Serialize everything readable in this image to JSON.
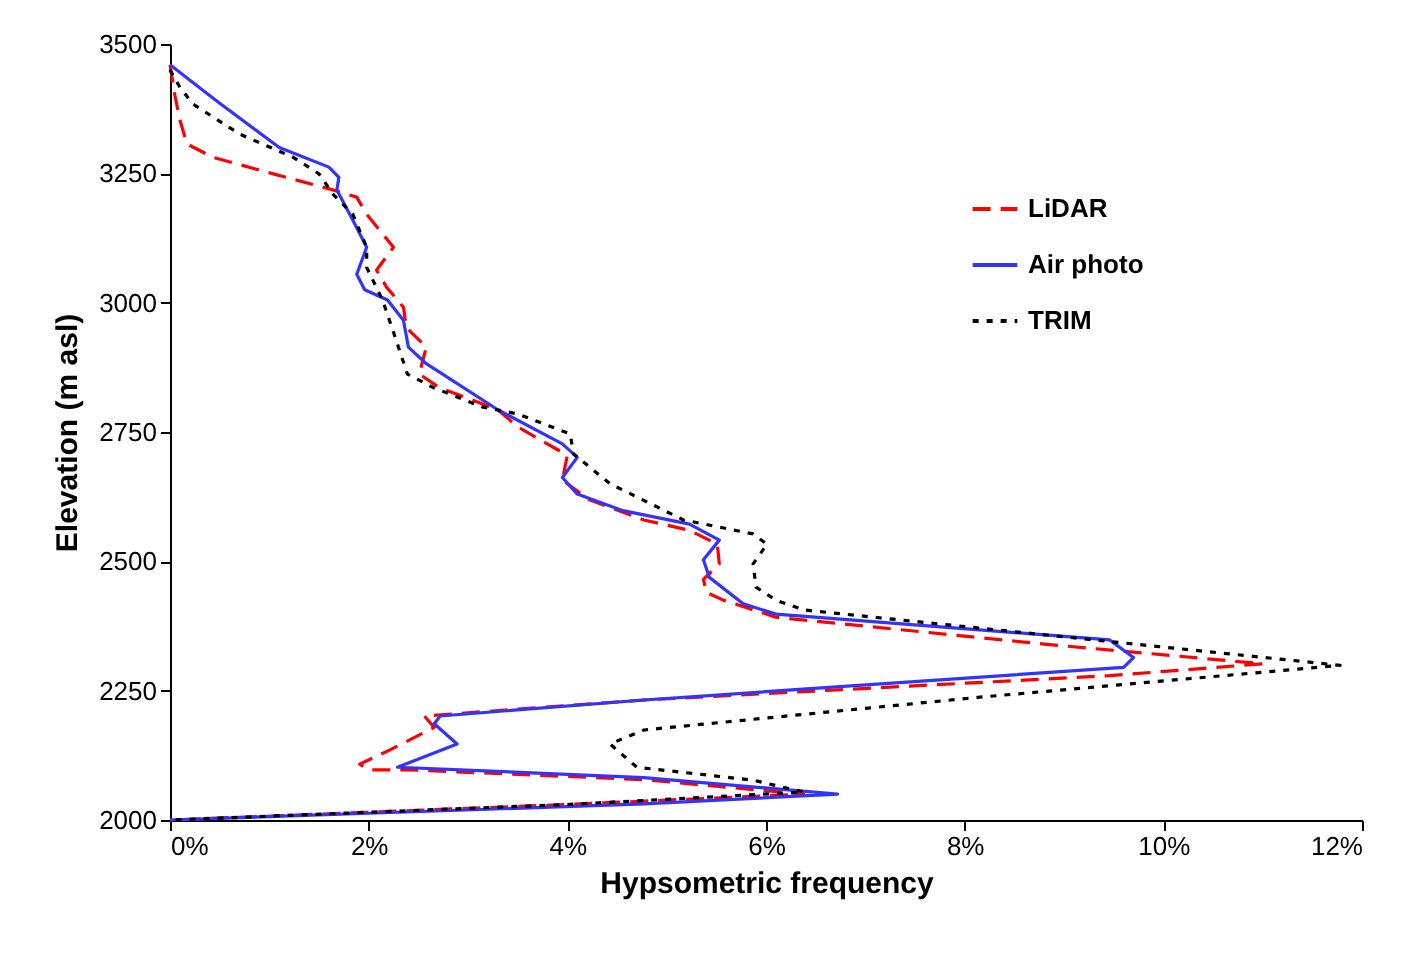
{
  "chart_data": {
    "type": "line",
    "xlabel": "Hypsometric frequency",
    "ylabel": "Elevation (m asl)",
    "xlim": [
      0,
      12
    ],
    "xticks": [
      {
        "value": 0,
        "label": "0%"
      },
      {
        "value": 2,
        "label": "2%"
      },
      {
        "value": 4,
        "label": "4%"
      },
      {
        "value": 6,
        "label": "6%"
      },
      {
        "value": 8,
        "label": "8%"
      },
      {
        "value": 10,
        "label": "10%"
      },
      {
        "value": 12,
        "label": "12%"
      }
    ],
    "ylim": [
      2000,
      3500
    ],
    "yticks": [
      2000,
      2250,
      2500,
      2750,
      3000,
      3250,
      3500
    ],
    "grid": false,
    "legend": "top right",
    "marker": "none",
    "series": [
      {
        "name": "LiDAR",
        "color": "#ff0000",
        "line_style": "dashed",
        "x": [
          0,
          0.05,
          0.1,
          0.17,
          0.43,
          1.04,
          1.64,
          1.88,
          1.98,
          2.25,
          2.08,
          2.18,
          2.35,
          2.38,
          2.58,
          2.51,
          2.71,
          3.3,
          3.5,
          4.0,
          3.95,
          4.22,
          4.77,
          5.23,
          5.51,
          5.53,
          5.37,
          5.4,
          5.57,
          6.1,
          8.8,
          11.0,
          9.46,
          4.77,
          2.56,
          2.66,
          2.21,
          1.91,
          2.0,
          2.4,
          4.77,
          6.38,
          4.0,
          2.0,
          0
        ],
        "values": [
          3460,
          3400,
          3353,
          3307,
          3281,
          3249,
          3218,
          3204,
          3171,
          3107,
          3063,
          3030,
          2991,
          2952,
          2914,
          2862,
          2836,
          2793,
          2760,
          2705,
          2657,
          2619,
          2580,
          2560,
          2533,
          2495,
          2465,
          2440,
          2425,
          2392,
          2340,
          2302,
          2279,
          2232,
          2201,
          2179,
          2135,
          2108,
          2097,
          2097,
          2078,
          2050,
          2030,
          2015,
          2000
        ]
      },
      {
        "name": "Air photo",
        "color": "#3333ff",
        "line_style": "solid",
        "x": [
          0,
          0.47,
          1.1,
          1.6,
          1.7,
          1.68,
          1.84,
          1.98,
          1.88,
          1.96,
          2.19,
          2.35,
          2.4,
          2.58,
          3.3,
          3.95,
          4.1,
          3.95,
          4.1,
          4.56,
          5.23,
          5.53,
          5.37,
          5.43,
          5.77,
          6.1,
          9.46,
          9.7,
          9.6,
          4.77,
          2.72,
          2.66,
          2.89,
          2.29,
          4.77,
          6.72,
          4.77,
          2.0,
          0
        ],
        "values": [
          3460,
          3390,
          3300,
          3262,
          3242,
          3218,
          3160,
          3107,
          3055,
          3025,
          3005,
          2966,
          2914,
          2882,
          2793,
          2727,
          2701,
          2662,
          2630,
          2598,
          2572,
          2541,
          2503,
          2469,
          2418,
          2398,
          2348,
          2314,
          2295,
          2232,
          2201,
          2186,
          2147,
          2102,
          2082,
          2050,
          2031,
          2013,
          2000
        ]
      },
      {
        "name": "TRIM",
        "color": "#000000",
        "line_style": "dotted",
        "x": [
          0,
          0.1,
          0.23,
          0.7,
          1.24,
          1.5,
          1.64,
          1.84,
          1.98,
          1.98,
          2.14,
          2.3,
          2.39,
          2.65,
          3.15,
          3.5,
          4.03,
          4.06,
          4.43,
          5.17,
          5.87,
          6.01,
          5.87,
          5.9,
          6.1,
          6.38,
          11.78,
          8.13,
          4.77,
          4.43,
          4.7,
          5.87,
          6.38,
          4.0,
          0
        ],
        "values": [
          3450,
          3416,
          3384,
          3326,
          3281,
          3249,
          3210,
          3171,
          3107,
          3068,
          3005,
          2914,
          2862,
          2836,
          2798,
          2785,
          2746,
          2708,
          2650,
          2580,
          2553,
          2533,
          2495,
          2450,
          2425,
          2406,
          2299,
          2237,
          2174,
          2147,
          2102,
          2077,
          2054,
          2030,
          2000
        ]
      }
    ]
  }
}
